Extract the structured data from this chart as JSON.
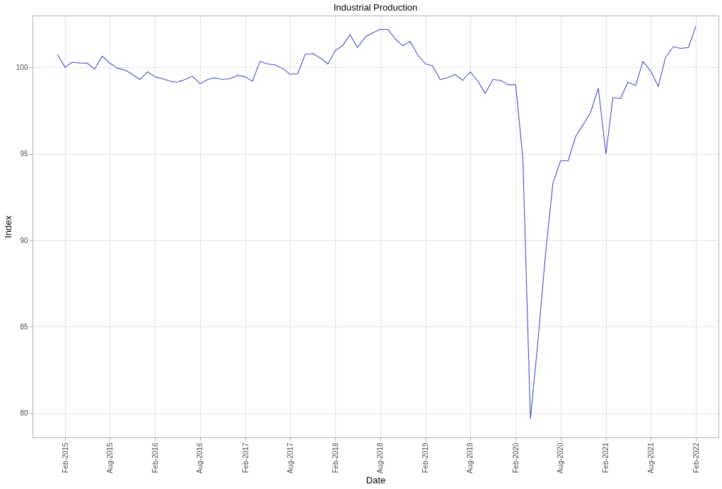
{
  "chart_data": {
    "type": "line",
    "title": "Industrial Production",
    "xlabel": "Date",
    "ylabel": "Index",
    "x": [
      "2015-01",
      "2015-02",
      "2015-03",
      "2015-04",
      "2015-05",
      "2015-06",
      "2015-07",
      "2015-08",
      "2015-09",
      "2015-10",
      "2015-11",
      "2015-12",
      "2016-01",
      "2016-02",
      "2016-03",
      "2016-04",
      "2016-05",
      "2016-06",
      "2016-07",
      "2016-08",
      "2016-09",
      "2016-10",
      "2016-11",
      "2016-12",
      "2017-01",
      "2017-02",
      "2017-03",
      "2017-04",
      "2017-05",
      "2017-06",
      "2017-07",
      "2017-08",
      "2017-09",
      "2017-10",
      "2017-11",
      "2017-12",
      "2018-01",
      "2018-02",
      "2018-03",
      "2018-04",
      "2018-05",
      "2018-06",
      "2018-07",
      "2018-08",
      "2018-09",
      "2018-10",
      "2018-11",
      "2018-12",
      "2019-01",
      "2019-02",
      "2019-03",
      "2019-04",
      "2019-05",
      "2019-06",
      "2019-07",
      "2019-08",
      "2019-09",
      "2019-10",
      "2019-11",
      "2019-12",
      "2020-01",
      "2020-02",
      "2020-03",
      "2020-04",
      "2020-05",
      "2020-06",
      "2020-07",
      "2020-08",
      "2020-09",
      "2020-10",
      "2020-11",
      "2020-12",
      "2021-01",
      "2021-02",
      "2021-03",
      "2021-04",
      "2021-05",
      "2021-06",
      "2021-07",
      "2021-08",
      "2021-09",
      "2021-10",
      "2021-11",
      "2021-12",
      "2022-01",
      "2022-02"
    ],
    "series": [
      {
        "color": "#4b4bd0",
        "values": [
          100.75,
          100.0,
          100.3,
          100.25,
          100.25,
          99.9,
          100.65,
          100.25,
          99.95,
          99.85,
          99.6,
          99.3,
          99.75,
          99.45,
          99.35,
          99.2,
          99.15,
          99.3,
          99.5,
          99.05,
          99.3,
          99.4,
          99.3,
          99.35,
          99.55,
          99.45,
          99.2,
          100.35,
          100.2,
          100.15,
          99.95,
          99.6,
          99.65,
          100.75,
          100.8,
          100.55,
          100.2,
          101.0,
          101.25,
          101.9,
          101.15,
          101.75,
          102.0,
          102.2,
          102.2,
          101.65,
          101.25,
          101.5,
          100.7,
          100.2,
          100.1,
          99.3,
          99.4,
          99.6,
          99.25,
          99.75,
          99.2,
          98.5,
          99.3,
          99.25,
          99.0,
          99.0,
          94.8,
          79.7,
          84.1,
          89.2,
          93.3,
          94.6,
          94.6,
          96.0,
          96.7,
          97.4,
          98.8,
          95.0,
          98.25,
          98.2,
          99.15,
          98.95,
          100.35,
          99.8,
          98.9,
          100.6,
          101.2,
          101.1,
          101.15,
          102.4
        ]
      }
    ],
    "xlim": [
      "2014-09-22",
      "2022-05-03"
    ],
    "xticks": [
      {
        "value": "2015-02",
        "label": "Feb-2015"
      },
      {
        "value": "2015-08",
        "label": "Aug-2015"
      },
      {
        "value": "2016-02",
        "label": "Feb-2016"
      },
      {
        "value": "2016-08",
        "label": "Aug-2016"
      },
      {
        "value": "2017-02",
        "label": "Feb-2017"
      },
      {
        "value": "2017-08",
        "label": "Aug-2017"
      },
      {
        "value": "2018-02",
        "label": "Feb-2018"
      },
      {
        "value": "2018-08",
        "label": "Aug-2018"
      },
      {
        "value": "2019-02",
        "label": "Feb-2019"
      },
      {
        "value": "2019-08",
        "label": "Aug-2019"
      },
      {
        "value": "2020-02",
        "label": "Feb-2020"
      },
      {
        "value": "2020-08",
        "label": "Aug-2020"
      },
      {
        "value": "2021-02",
        "label": "Feb-2021"
      },
      {
        "value": "2021-08",
        "label": "Aug-2021"
      },
      {
        "value": "2022-02",
        "label": "Feb-2022"
      }
    ],
    "ylim": [
      78.6,
      103.0
    ],
    "yticks": [
      80,
      85,
      90,
      95,
      100
    ],
    "grid": true,
    "legend": false,
    "marker": "none",
    "line_style": "solid"
  }
}
